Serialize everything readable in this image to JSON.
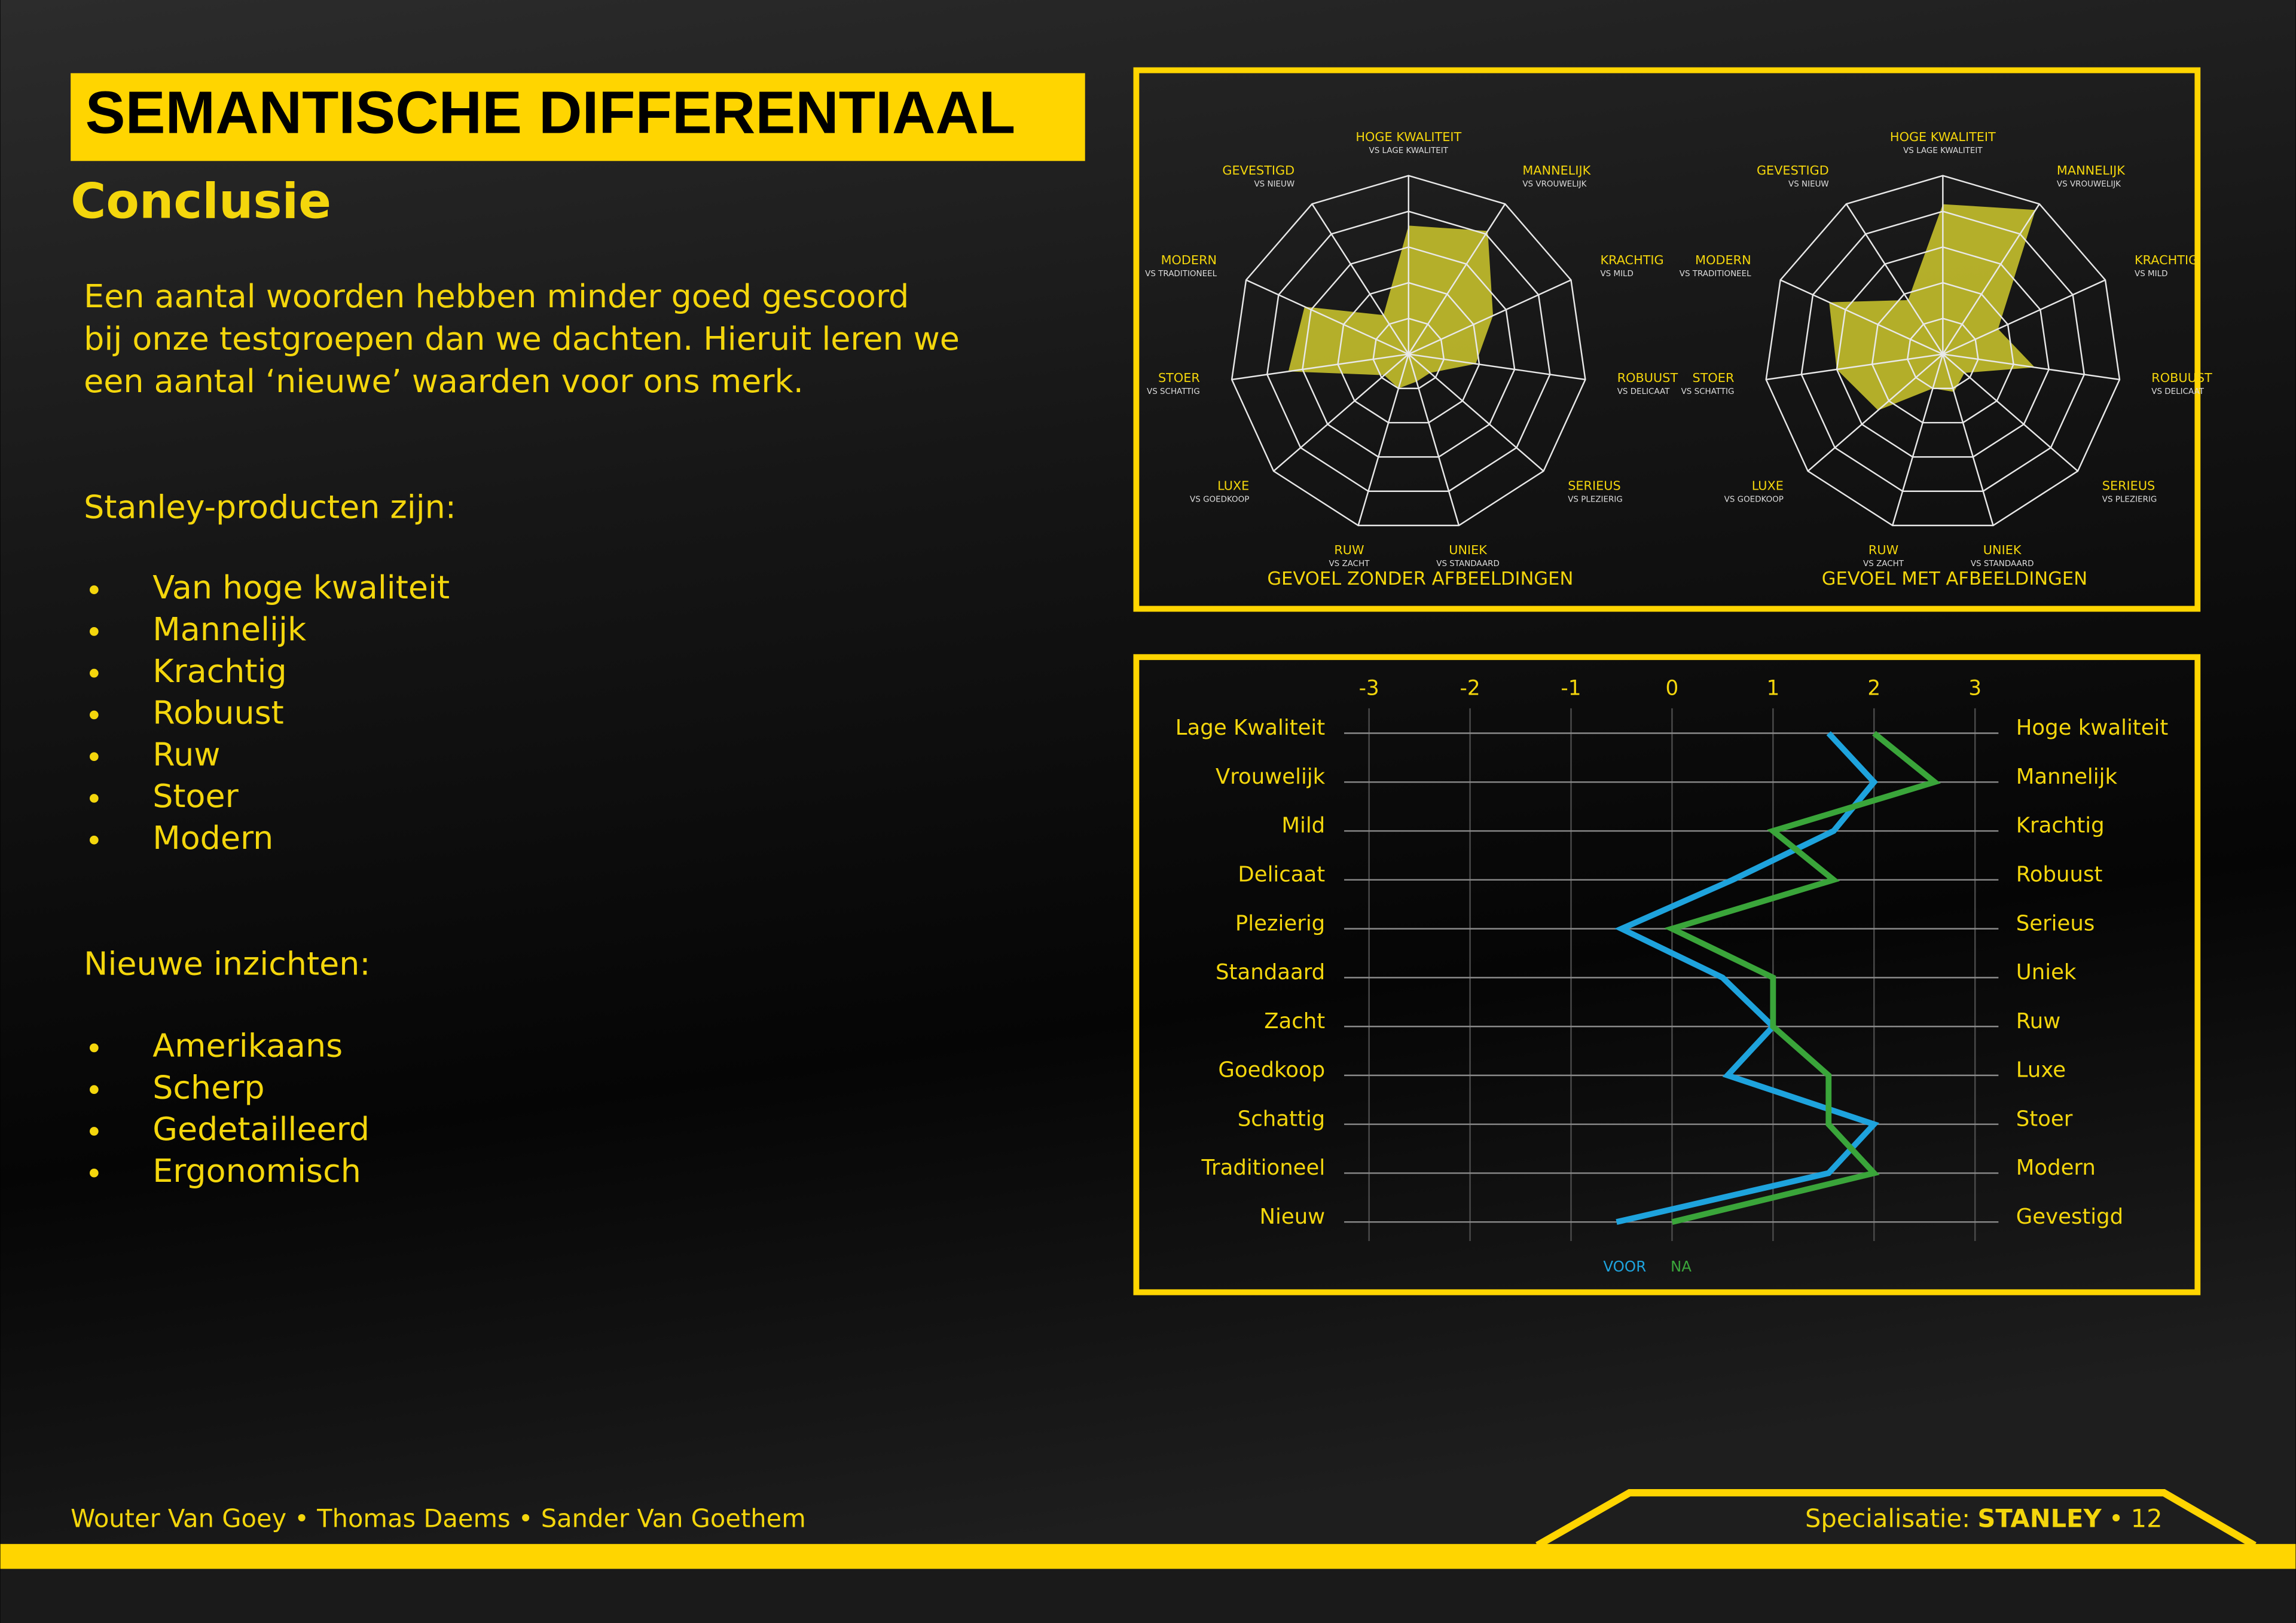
{
  "header": {
    "title": "SEMANTISCHE DIFFERENTIAAL",
    "subtitle": "Conclusie"
  },
  "intro": {
    "lines": [
      "Een aantal woorden hebben minder goed gescoord",
      "bij onze testgroepen dan we dachten. Hieruit leren we",
      "een aantal ‘nieuwe’ waarden voor ons merk."
    ]
  },
  "products": {
    "heading": "Stanley-producten zijn:",
    "items": [
      "Van hoge kwaliteit",
      "Mannelijk",
      "Krachtig",
      "Robuust",
      "Ruw",
      "Stoer",
      "Modern"
    ]
  },
  "insights": {
    "heading": "Nieuwe inzichten:",
    "items": [
      "Amerikaans",
      "Scherp",
      "Gedetailleerd",
      "Ergonomisch"
    ]
  },
  "footer": {
    "authors": "Wouter Van Goey • Thomas Daems • Sander Van Goethem",
    "label": "Specialisatie:",
    "brand": "STANLEY",
    "separator": "•",
    "page": "12"
  },
  "chart_data": [
    {
      "type": "radar",
      "title": "GEVOEL ZONDER AFBEELDINGEN",
      "categories": [
        "HOGE KWALITEIT",
        "MANNELIJK",
        "KRACHTIG",
        "ROBUUST",
        "SERIEUS",
        "UNIEK",
        "RUW",
        "LUXE",
        "STOER",
        "MODERN",
        "GEVESTIGD"
      ],
      "sublabels": [
        "VS LAGE KWALITEIT",
        "VS VROUWELIJK",
        "VS MILD",
        "VS DELICAAT",
        "VS PLEZIERIG",
        "VS STANDAARD",
        "VS ZACHT",
        "VS GOEDKOOP",
        "VS SCHATTIG",
        "VS TRADITIONEEL",
        "VS NIEUW"
      ],
      "values": [
        3.6,
        4.1,
        2.6,
        1.9,
        0.8,
        0.8,
        1.0,
        0.9,
        3.4,
        3.2,
        1.3
      ],
      "color": "#c9c42c",
      "rlim": [
        0,
        5
      ],
      "rticks": [
        1,
        2,
        3,
        4,
        5
      ]
    },
    {
      "type": "radar",
      "title": "GEVOEL MET AFBEELDINGEN",
      "categories": [
        "HOGE KWALITEIT",
        "MANNELIJK",
        "KRACHTIG",
        "ROBUUST",
        "SERIEUS",
        "UNIEK",
        "RUW",
        "LUXE",
        "STOER",
        "MODERN",
        "GEVESTIGD"
      ],
      "sublabels": [
        "VS LAGE KWALITEIT",
        "VS VROUWELIJK",
        "VS MILD",
        "VS DELICAAT",
        "VS PLEZIERIG",
        "VS STANDAARD",
        "VS ZACHT",
        "VS GOEDKOOP",
        "VS SCHATTIG",
        "VS TRADITIONEEL",
        "VS NIEUW"
      ],
      "values": [
        4.2,
        4.8,
        1.7,
        2.6,
        0.8,
        1.1,
        1.0,
        2.4,
        3.0,
        3.5,
        1.8
      ],
      "color": "#c9c42c",
      "rlim": [
        0,
        5
      ],
      "rticks": [
        1,
        2,
        3,
        4,
        5
      ]
    },
    {
      "type": "line",
      "orientation": "horizontal",
      "categories": [
        "Lage Kwaliteit",
        "Vrouwelijk",
        "Mild",
        "Delicaat",
        "Plezierig",
        "Standaard",
        "Zacht",
        "Goedkoop",
        "Schattig",
        "Traditioneel",
        "Nieuw"
      ],
      "categories_right": [
        "Hoge kwaliteit",
        "Mannelijk",
        "Krachtig",
        "Robuust",
        "Serieus",
        "Uniek",
        "Ruw",
        "Luxe",
        "Stoer",
        "Modern",
        "Gevestigd"
      ],
      "xlim": [
        -3,
        3
      ],
      "xticks": [
        -3,
        -2,
        -1,
        0,
        1,
        2,
        3
      ],
      "grid": true,
      "series": [
        {
          "name": "VOOR",
          "color": "#1ea3dd",
          "values": [
            1.55,
            2.0,
            1.6,
            0.6,
            -0.5,
            0.5,
            1.0,
            0.55,
            2.0,
            1.55,
            -0.55
          ]
        },
        {
          "name": "NA",
          "color": "#3aa53a",
          "values": [
            2.0,
            2.6,
            1.0,
            1.6,
            0.0,
            1.0,
            1.0,
            1.55,
            1.55,
            2.0,
            0.0
          ]
        }
      ]
    }
  ]
}
